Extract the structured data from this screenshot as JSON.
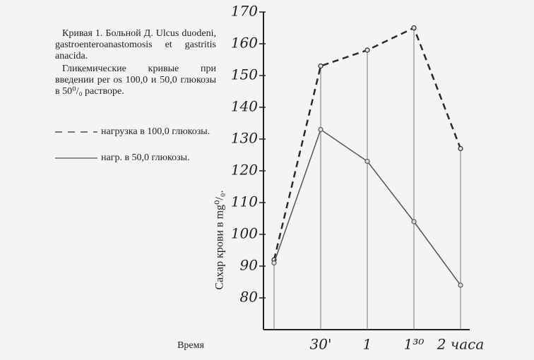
{
  "chart_data": {
    "type": "line",
    "title": "Кривая 1. Больной Д. Ulcus duodeni, gastroenteroanastomosis et gastritis anacida.",
    "subtitle": "Гликемические кривые при введении per os 100,0 и 50,0 глюкозы в 50⁰/₀ растворе.",
    "x_label": "Время",
    "y_label": "Сахар крови в mg⁰/₀.",
    "categories": [
      null,
      "30'",
      "1",
      "1³⁰",
      "2 часа"
    ],
    "series": [
      {
        "name": "нагрузка в 100,0 глюкозы.",
        "color": "#2a2a2a",
        "dash": true,
        "values": [
          92,
          153,
          158,
          165,
          127
        ]
      },
      {
        "name": "нагр. в 50,0 глюкозы.",
        "color": "#555555",
        "dash": false,
        "values": [
          91,
          133,
          123,
          104,
          84
        ]
      }
    ],
    "ylim": [
      70,
      170
    ],
    "yticks": [
      80,
      90,
      100,
      110,
      120,
      130,
      140,
      150,
      160,
      170
    ]
  }
}
